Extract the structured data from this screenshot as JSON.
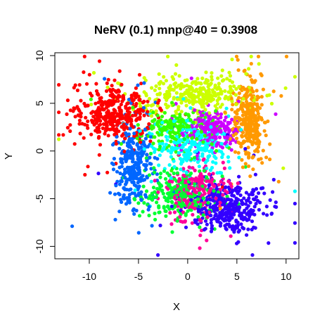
{
  "chart_data": {
    "type": "scatter",
    "title": "NeRV (0.1) mnp@40 = 0.3908",
    "xlabel": "X",
    "ylabel": "Y",
    "xlim": [
      -13.5,
      11.3
    ],
    "ylim": [
      -11.3,
      10.3
    ],
    "xticks": [
      -10,
      -5,
      0,
      5,
      10
    ],
    "yticks": [
      -10,
      -5,
      0,
      5,
      10
    ],
    "xtick_labels": [
      "-10",
      "-5",
      "0",
      "5",
      "10"
    ],
    "ytick_labels": [
      "-10",
      "-5",
      "0",
      "5",
      "10"
    ],
    "series": [
      {
        "name": "red",
        "color": "#ff0000",
        "center": [
          -7.5,
          3.8
        ],
        "spread": [
          1.9,
          1.5
        ],
        "count": 380
      },
      {
        "name": "yellow-green",
        "color": "#ccff00",
        "center": [
          0.5,
          6.0
        ],
        "spread": [
          2.6,
          1.0
        ],
        "count": 320
      },
      {
        "name": "orange",
        "color": "#ff9900",
        "center": [
          6.3,
          3.5
        ],
        "spread": [
          0.8,
          2.3
        ],
        "count": 300
      },
      {
        "name": "blue",
        "color": "#0066ff",
        "center": [
          -5.5,
          -1.5
        ],
        "spread": [
          0.9,
          2.2
        ],
        "count": 300
      },
      {
        "name": "violet",
        "color": "#3300ff",
        "center": [
          4.0,
          -5.8
        ],
        "spread": [
          1.9,
          1.3
        ],
        "count": 360
      },
      {
        "name": "green",
        "color": "#00ff33",
        "center": [
          -1.0,
          -4.5
        ],
        "spread": [
          1.9,
          1.3
        ],
        "count": 260
      },
      {
        "name": "magenta",
        "color": "#ff0099",
        "center": [
          0.8,
          -4.3
        ],
        "spread": [
          1.5,
          1.5
        ],
        "count": 220
      },
      {
        "name": "cyan",
        "color": "#00ffff",
        "center": [
          0.3,
          0.5
        ],
        "spread": [
          2.0,
          1.4
        ],
        "count": 260
      },
      {
        "name": "purple",
        "color": "#cc00ff",
        "center": [
          2.3,
          2.2
        ],
        "spread": [
          1.2,
          0.9
        ],
        "count": 220
      },
      {
        "name": "mid-green",
        "color": "#33ff00",
        "center": [
          -1.0,
          2.4
        ],
        "spread": [
          2.0,
          1.0
        ],
        "count": 200
      }
    ]
  }
}
